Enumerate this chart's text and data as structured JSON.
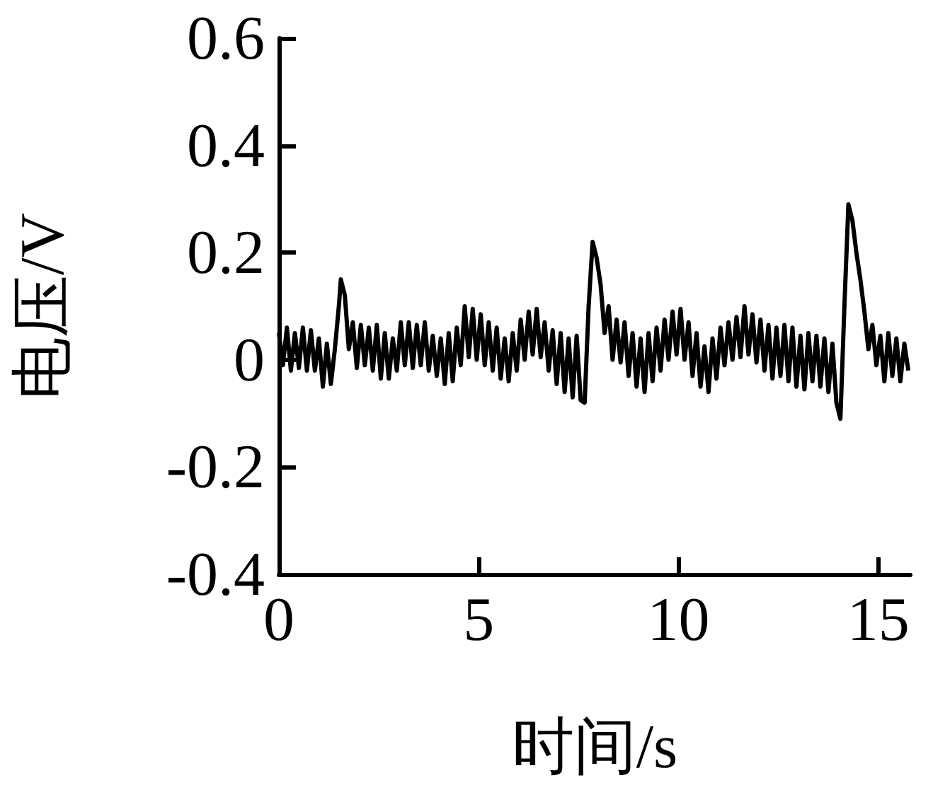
{
  "chart_data": {
    "type": "line",
    "xlabel": "时间/s",
    "ylabel": "电压/V",
    "xlim": [
      0,
      15.8
    ],
    "xticks": [
      0,
      5,
      10,
      15
    ],
    "ylim": [
      -0.4,
      0.6
    ],
    "yticks": [
      -0.4,
      -0.2,
      0,
      0.2,
      0.4,
      0.6
    ],
    "grid": false,
    "marker": "none",
    "line_style": "solid",
    "series": [
      {
        "color": "#000000",
        "x": [
          0,
          0.1,
          0.2,
          0.3,
          0.4,
          0.5,
          0.6,
          0.7,
          0.8,
          0.9,
          1.0,
          1.1,
          1.2,
          1.3,
          1.4,
          1.5,
          1.55,
          1.65,
          1.75,
          1.85,
          1.95,
          2.05,
          2.15,
          2.25,
          2.35,
          2.45,
          2.55,
          2.65,
          2.75,
          2.85,
          2.95,
          3.05,
          3.15,
          3.25,
          3.35,
          3.45,
          3.55,
          3.65,
          3.75,
          3.85,
          3.95,
          4.05,
          4.15,
          4.25,
          4.35,
          4.45,
          4.55,
          4.65,
          4.75,
          4.85,
          4.95,
          5.05,
          5.15,
          5.25,
          5.35,
          5.45,
          5.55,
          5.65,
          5.75,
          5.85,
          5.95,
          6.05,
          6.15,
          6.25,
          6.35,
          6.45,
          6.55,
          6.65,
          6.75,
          6.85,
          6.95,
          7.05,
          7.15,
          7.25,
          7.35,
          7.45,
          7.55,
          7.65,
          7.75,
          7.85,
          7.95,
          8.05,
          8.15,
          8.25,
          8.35,
          8.45,
          8.55,
          8.65,
          8.75,
          8.85,
          8.95,
          9.05,
          9.15,
          9.25,
          9.35,
          9.45,
          9.55,
          9.65,
          9.75,
          9.85,
          9.95,
          10.05,
          10.15,
          10.25,
          10.35,
          10.45,
          10.55,
          10.65,
          10.75,
          10.85,
          10.95,
          11.05,
          11.15,
          11.25,
          11.35,
          11.45,
          11.55,
          11.65,
          11.75,
          11.85,
          11.95,
          12.05,
          12.15,
          12.25,
          12.35,
          12.45,
          12.55,
          12.65,
          12.75,
          12.85,
          12.95,
          13.05,
          13.15,
          13.25,
          13.35,
          13.45,
          13.55,
          13.65,
          13.75,
          13.85,
          13.95,
          14.05,
          14.15,
          14.25,
          14.35,
          14.45,
          14.55,
          14.65,
          14.75,
          14.85,
          14.95,
          15.05,
          15.15,
          15.25,
          15.35,
          15.45,
          15.55,
          15.65,
          15.75
        ],
        "values": [
          0.05,
          -0.01,
          0.06,
          -0.02,
          0.05,
          -0.015,
          0.06,
          -0.02,
          0.055,
          -0.02,
          0.04,
          -0.05,
          0.03,
          -0.045,
          0.02,
          0.1,
          0.15,
          0.12,
          0.02,
          0.07,
          -0.015,
          0.065,
          -0.01,
          0.06,
          -0.02,
          0.065,
          -0.035,
          0.05,
          -0.035,
          0.04,
          -0.02,
          0.07,
          -0.01,
          0.07,
          -0.015,
          0.065,
          -0.01,
          0.07,
          -0.02,
          0.045,
          -0.03,
          0.04,
          -0.045,
          0.05,
          -0.04,
          0.06,
          -0.01,
          0.1,
          0.005,
          0.095,
          0.0,
          0.085,
          -0.01,
          0.07,
          -0.02,
          0.06,
          -0.035,
          0.04,
          -0.04,
          0.05,
          -0.02,
          0.075,
          0.0,
          0.09,
          0.01,
          0.095,
          0.005,
          0.07,
          -0.02,
          0.055,
          -0.045,
          0.05,
          -0.06,
          0.04,
          -0.07,
          0.045,
          -0.075,
          -0.08,
          0.1,
          0.22,
          0.19,
          0.14,
          0.05,
          0.1,
          0.0,
          0.075,
          -0.005,
          0.07,
          -0.03,
          0.05,
          -0.05,
          0.04,
          -0.06,
          0.05,
          -0.04,
          0.06,
          -0.02,
          0.075,
          0.0,
          0.09,
          0.01,
          0.095,
          0.0,
          0.07,
          -0.03,
          0.05,
          -0.05,
          0.025,
          -0.06,
          0.04,
          -0.035,
          0.06,
          -0.01,
          0.07,
          0.0,
          0.08,
          0.005,
          0.1,
          0.01,
          0.085,
          -0.005,
          0.075,
          -0.02,
          0.065,
          -0.035,
          0.06,
          -0.03,
          0.065,
          -0.04,
          0.06,
          -0.05,
          0.045,
          -0.055,
          0.05,
          -0.04,
          0.045,
          -0.05,
          0.04,
          -0.06,
          0.03,
          -0.08,
          -0.11,
          0.1,
          0.29,
          0.26,
          0.2,
          0.15,
          0.09,
          0.02,
          0.065,
          -0.01,
          0.045,
          -0.04,
          0.05,
          -0.03,
          0.04,
          -0.04,
          0.03,
          -0.02
        ]
      }
    ]
  }
}
